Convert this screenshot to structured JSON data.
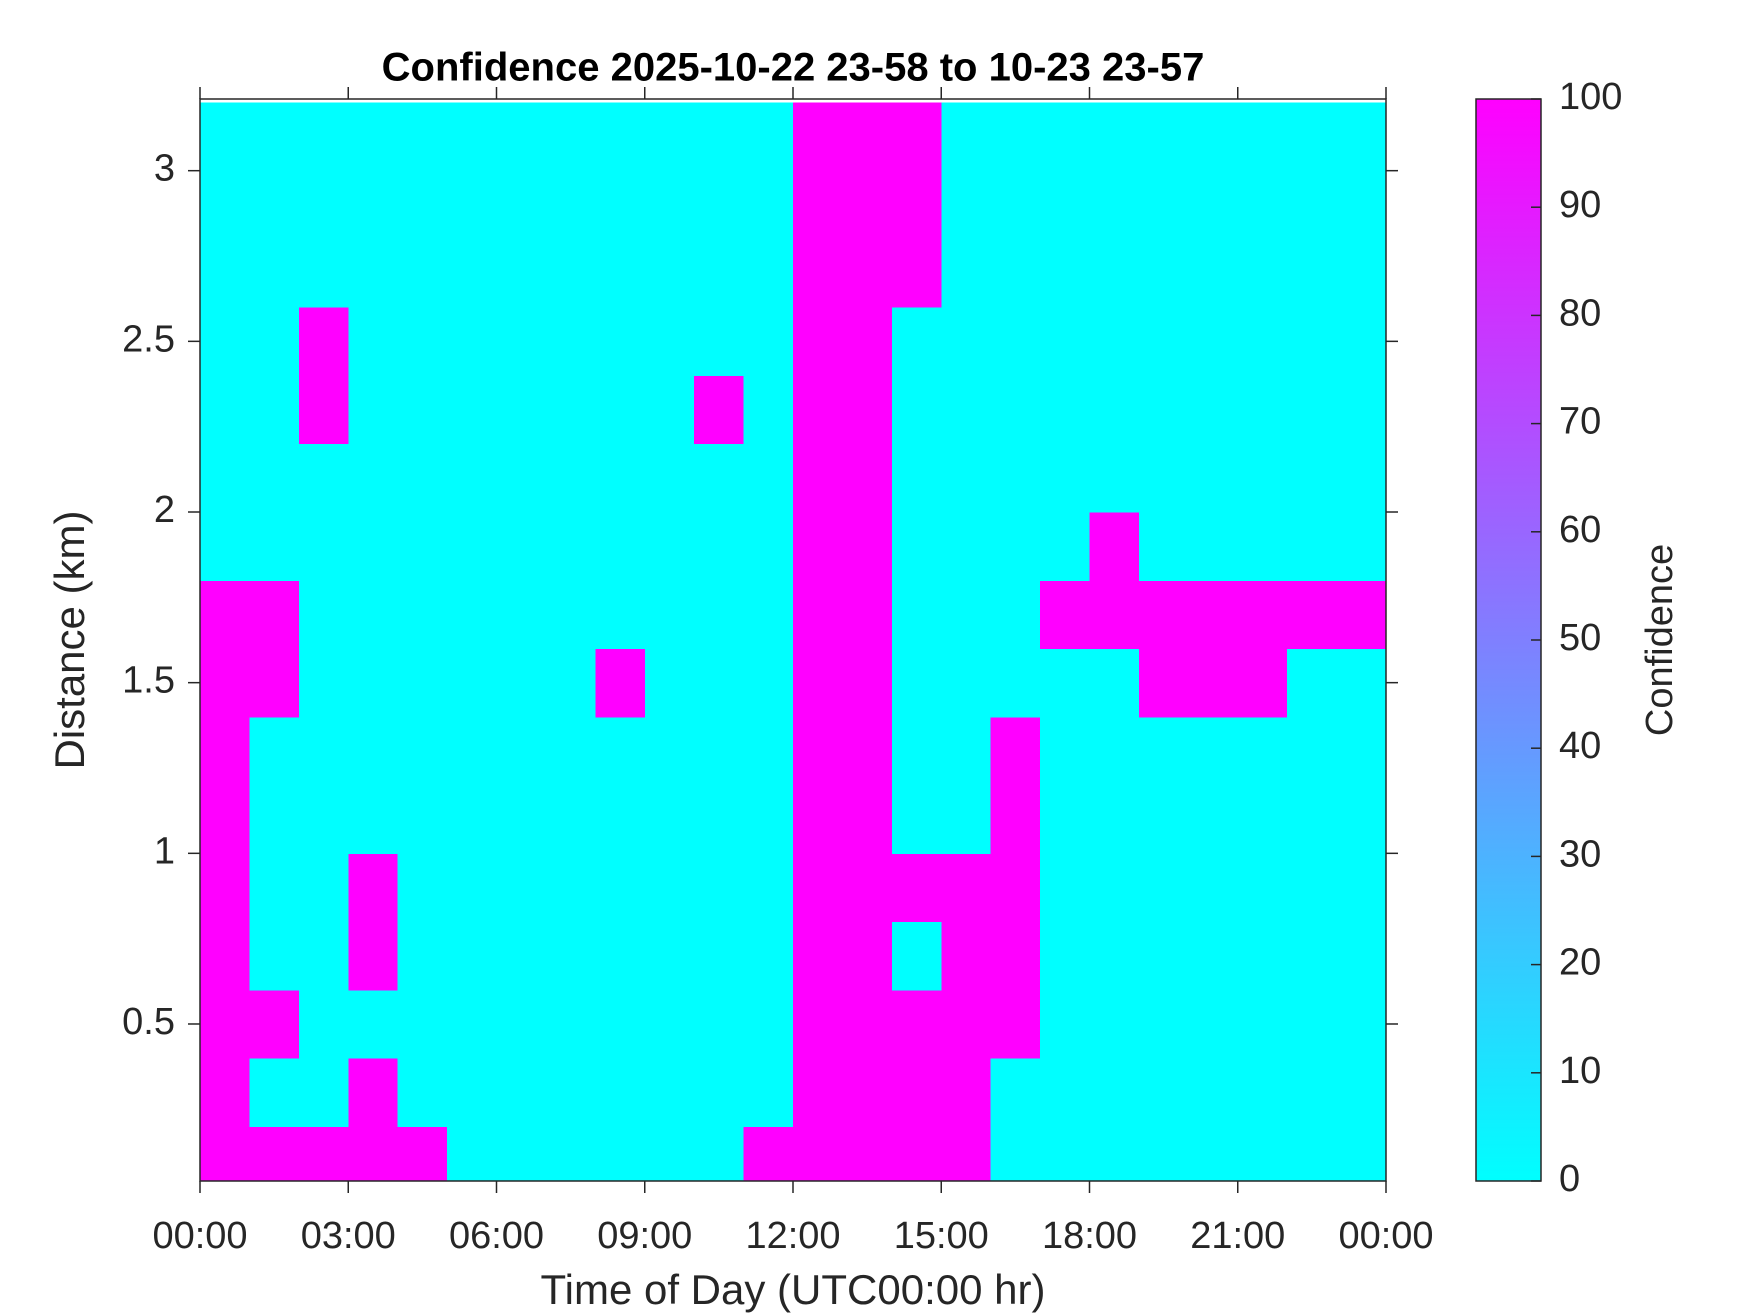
{
  "chart_data": {
    "type": "heatmap",
    "title": "Confidence 2025-10-22 23-58 to 10-23 23-57",
    "x_label": "Time of Day (UTC00:00 hr)",
    "y_label": "Distance (km)",
    "colorbar_label": "Confidence",
    "colormap": [
      "#00ffff",
      "#ff00ff"
    ],
    "clim": [
      0,
      100
    ],
    "cticks": [
      0,
      10,
      20,
      30,
      40,
      50,
      60,
      70,
      80,
      90,
      100
    ],
    "xlim": [
      0,
      24
    ],
    "xticks": [
      {
        "value": 0,
        "label": "00:00"
      },
      {
        "value": 3,
        "label": "03:00"
      },
      {
        "value": 6,
        "label": "06:00"
      },
      {
        "value": 9,
        "label": "09:00"
      },
      {
        "value": 12,
        "label": "12:00"
      },
      {
        "value": 15,
        "label": "15:00"
      },
      {
        "value": 18,
        "label": "18:00"
      },
      {
        "value": 21,
        "label": "21:00"
      },
      {
        "value": 24,
        "label": "00:00"
      }
    ],
    "ylim": [
      0.04,
      3.21
    ],
    "yticks": [
      0.5,
      1,
      1.5,
      2,
      2.5,
      3
    ],
    "x": [
      0.5,
      1.5,
      2.5,
      3.5,
      4.5,
      5.5,
      6.5,
      7.5,
      8.5,
      9.5,
      10.5,
      11.5,
      12.5,
      13.5,
      14.5,
      15.5,
      16.5,
      17.5,
      18.5,
      19.5,
      20.5,
      21.5,
      22.5,
      23.5
    ],
    "y": [
      0.1,
      0.3,
      0.5,
      0.7,
      0.9,
      1.1,
      1.3,
      1.5,
      1.7,
      1.9,
      2.1,
      2.3,
      2.5,
      2.7,
      2.9,
      3.1
    ],
    "z": [
      [
        100,
        100,
        100,
        100,
        100,
        0,
        0,
        0,
        0,
        0,
        0,
        100,
        100,
        100,
        100,
        100,
        0,
        0,
        0,
        0,
        0,
        0,
        0,
        0
      ],
      [
        100,
        0,
        0,
        100,
        0,
        0,
        0,
        0,
        0,
        0,
        0,
        0,
        100,
        100,
        100,
        100,
        0,
        0,
        0,
        0,
        0,
        0,
        0,
        0
      ],
      [
        100,
        100,
        0,
        0,
        0,
        0,
        0,
        0,
        0,
        0,
        0,
        0,
        100,
        100,
        100,
        100,
        100,
        0,
        0,
        0,
        0,
        0,
        0,
        0
      ],
      [
        100,
        0,
        0,
        100,
        0,
        0,
        0,
        0,
        0,
        0,
        0,
        0,
        100,
        100,
        0,
        100,
        100,
        0,
        0,
        0,
        0,
        0,
        0,
        0
      ],
      [
        100,
        0,
        0,
        100,
        0,
        0,
        0,
        0,
        0,
        0,
        0,
        0,
        100,
        100,
        100,
        100,
        100,
        0,
        0,
        0,
        0,
        0,
        0,
        0
      ],
      [
        100,
        0,
        0,
        0,
        0,
        0,
        0,
        0,
        0,
        0,
        0,
        0,
        100,
        100,
        0,
        0,
        100,
        0,
        0,
        0,
        0,
        0,
        0,
        0
      ],
      [
        100,
        0,
        0,
        0,
        0,
        0,
        0,
        0,
        0,
        0,
        0,
        0,
        100,
        100,
        0,
        0,
        100,
        0,
        0,
        0,
        0,
        0,
        0,
        0
      ],
      [
        100,
        100,
        0,
        0,
        0,
        0,
        0,
        0,
        100,
        0,
        0,
        0,
        100,
        100,
        0,
        0,
        0,
        0,
        0,
        100,
        100,
        100,
        0,
        0
      ],
      [
        100,
        100,
        0,
        0,
        0,
        0,
        0,
        0,
        0,
        0,
        0,
        0,
        100,
        100,
        0,
        0,
        0,
        100,
        100,
        100,
        100,
        100,
        100,
        100
      ],
      [
        0,
        0,
        0,
        0,
        0,
        0,
        0,
        0,
        0,
        0,
        0,
        0,
        100,
        100,
        0,
        0,
        0,
        0,
        100,
        0,
        0,
        0,
        0,
        0
      ],
      [
        0,
        0,
        0,
        0,
        0,
        0,
        0,
        0,
        0,
        0,
        0,
        0,
        100,
        100,
        0,
        0,
        0,
        0,
        0,
        0,
        0,
        0,
        0,
        0
      ],
      [
        0,
        0,
        100,
        0,
        0,
        0,
        0,
        0,
        0,
        0,
        100,
        0,
        100,
        100,
        0,
        0,
        0,
        0,
        0,
        0,
        0,
        0,
        0,
        0
      ],
      [
        0,
        0,
        100,
        0,
        0,
        0,
        0,
        0,
        0,
        0,
        0,
        0,
        100,
        100,
        0,
        0,
        0,
        0,
        0,
        0,
        0,
        0,
        0,
        0
      ],
      [
        0,
        0,
        0,
        0,
        0,
        0,
        0,
        0,
        0,
        0,
        0,
        0,
        100,
        100,
        100,
        0,
        0,
        0,
        0,
        0,
        0,
        0,
        0,
        0
      ],
      [
        0,
        0,
        0,
        0,
        0,
        0,
        0,
        0,
        0,
        0,
        0,
        0,
        100,
        100,
        100,
        0,
        0,
        0,
        0,
        0,
        0,
        0,
        0,
        0
      ],
      [
        0,
        0,
        0,
        0,
        0,
        0,
        0,
        0,
        0,
        0,
        0,
        0,
        100,
        100,
        100,
        0,
        0,
        0,
        0,
        0,
        0,
        0,
        0,
        0
      ]
    ]
  }
}
